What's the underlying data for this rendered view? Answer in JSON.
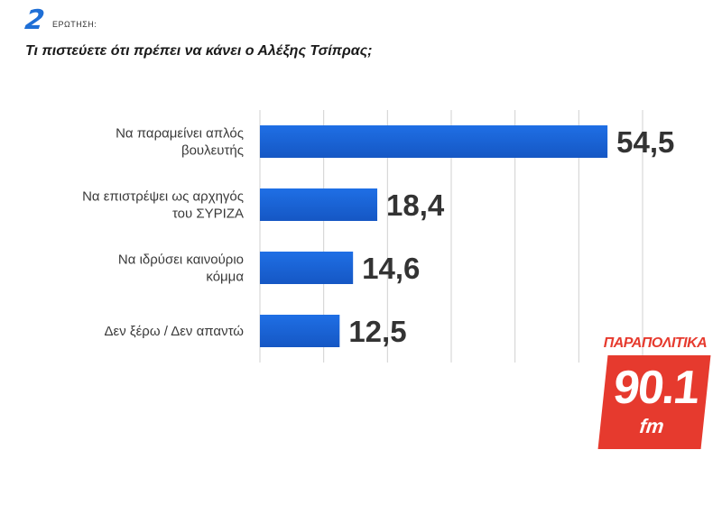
{
  "header": {
    "question_number": "2",
    "question_label": "ΕΡΩΤΗΣΗ:",
    "title": "Τι πιστεύετε ότι πρέπει να κάνει ο Αλέξης Τσίπρας;"
  },
  "logo": {
    "name": "ΠΑΡΑΠΟΛΙΤΙΚΑ",
    "frequency": "90.1",
    "band": "fm"
  },
  "colors": {
    "bar": "#1f6fe5",
    "bar_dark": "#1557c4",
    "gridline": "#d0d0d0",
    "brand": "#e63a2e"
  },
  "chart_data": {
    "type": "bar",
    "orientation": "horizontal",
    "categories": [
      [
        "Να παραμείνει απλός",
        "βουλευτής"
      ],
      [
        "Να επιστρέψει ως αρχηγός",
        "του ΣΥΡΙΖΑ"
      ],
      [
        "Να ιδρύσει καινούριο",
        "κόμμα"
      ],
      [
        "Δεν ξέρω / Δεν απαντώ"
      ]
    ],
    "values": [
      54.5,
      18.4,
      14.6,
      12.5
    ],
    "value_labels": [
      "54,5",
      "18,4",
      "14,6",
      "12,5"
    ],
    "xlim": [
      0,
      60
    ],
    "grid": true,
    "legend": "none"
  }
}
